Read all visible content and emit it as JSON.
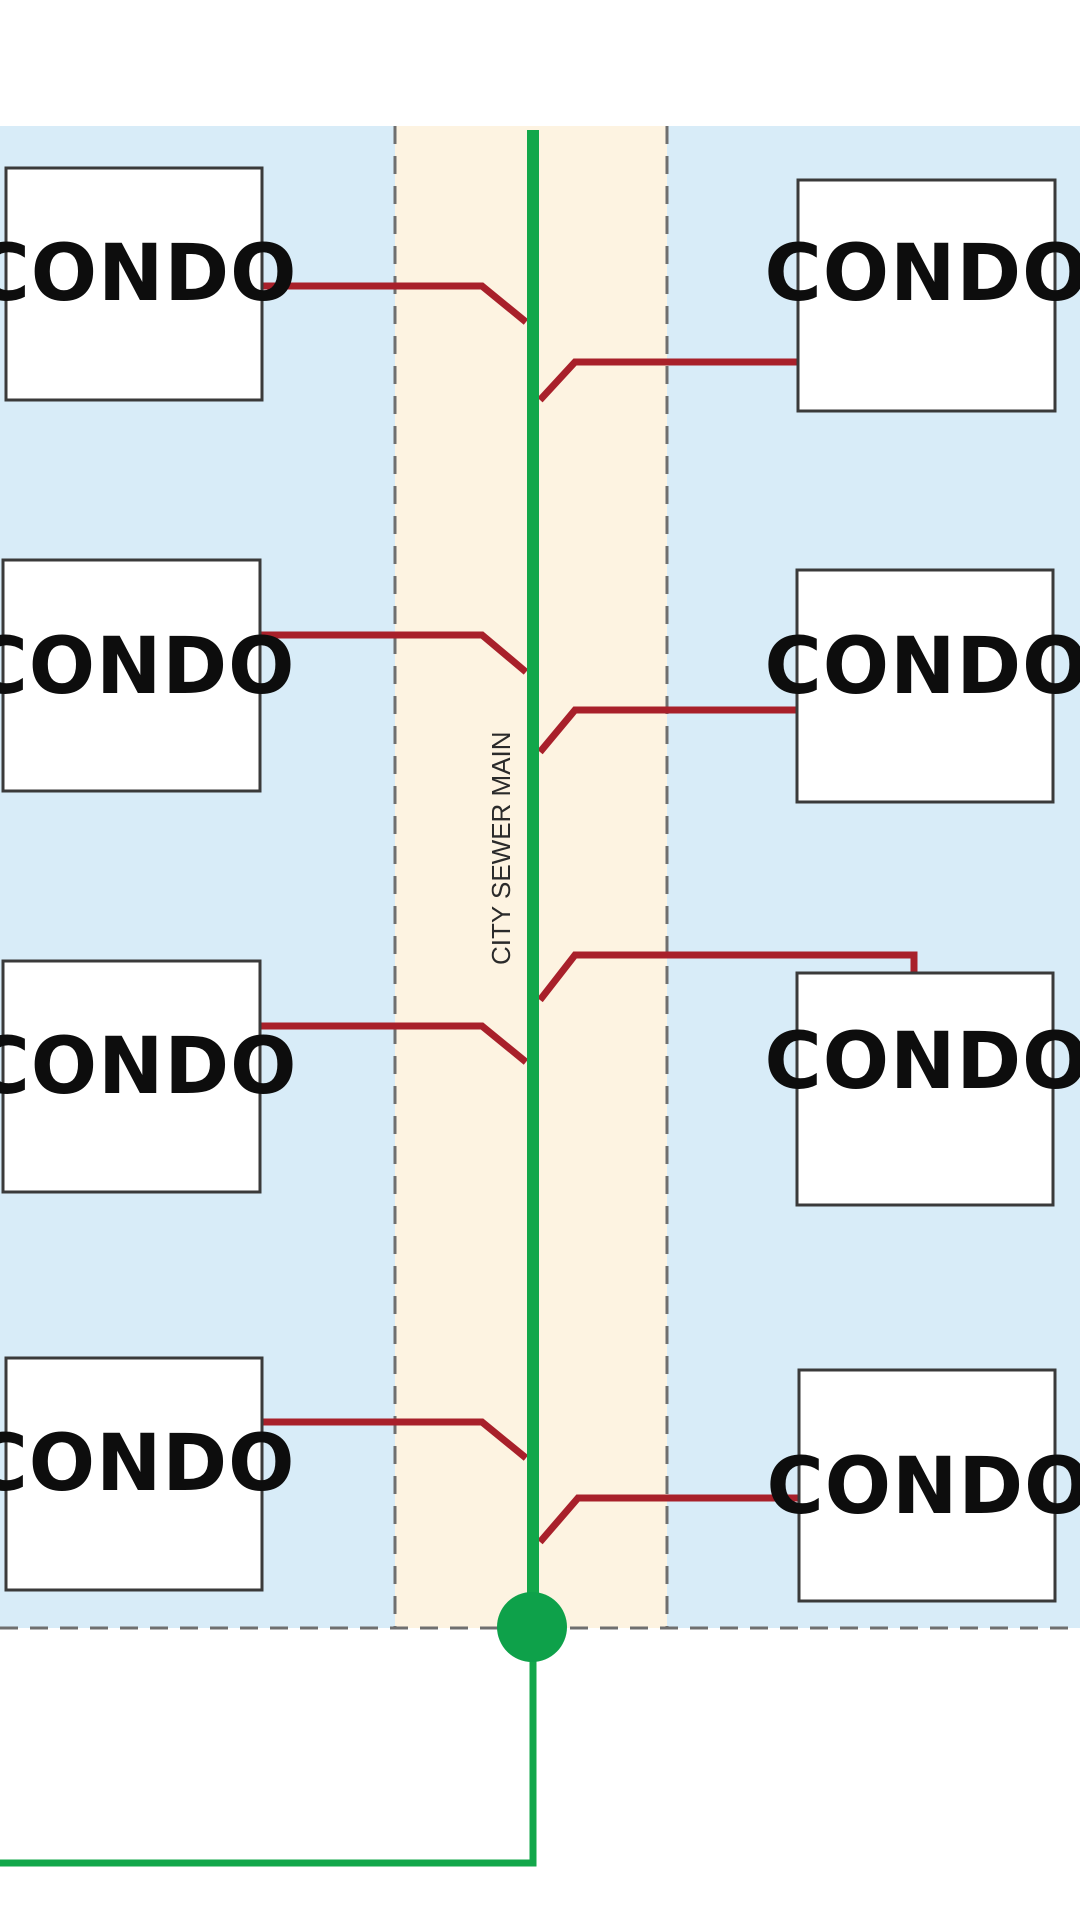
{
  "main_label": "CITY SEWER MAIN",
  "condos": {
    "left": [
      "CONDO",
      "CONDO",
      "CONDO",
      "CONDO"
    ],
    "right": [
      "CONDO",
      "CONDO",
      "CONDO",
      "CONDO"
    ]
  },
  "colors": {
    "property_area": "#d8ecf8",
    "street_strip": "#fdf3e1",
    "sewer_main": "#12a74a",
    "lateral": "#a8202a",
    "boundary_dash": "#6f6f6f",
    "condo_fill": "#ffffff",
    "condo_border": "#3a3a3a"
  }
}
